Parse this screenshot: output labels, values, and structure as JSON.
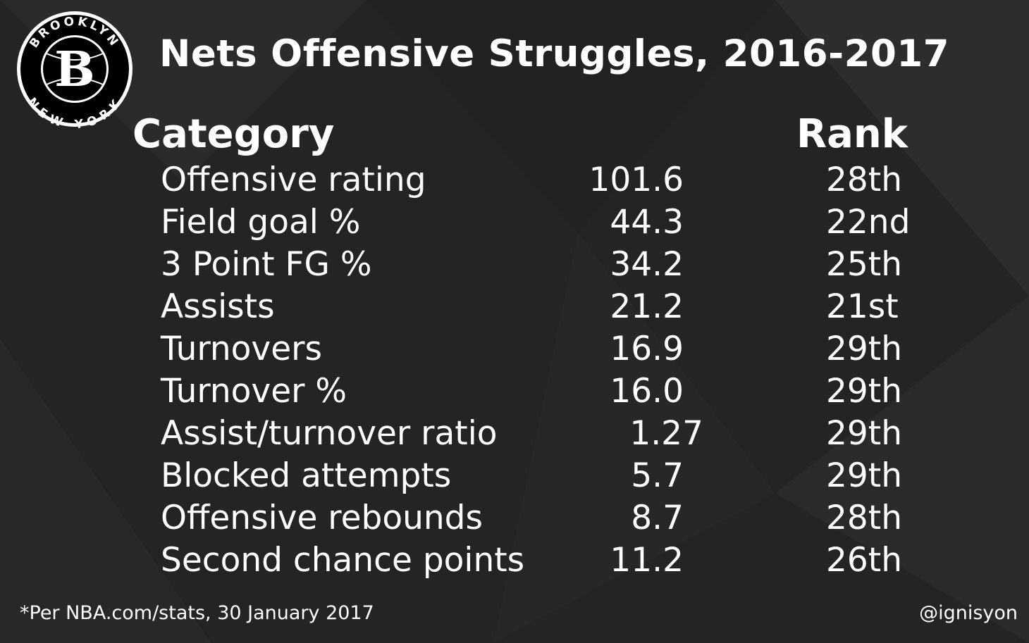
{
  "title": "Nets Offensive Struggles, 2016-2017",
  "logo": {
    "top_text": "BROOKLYN",
    "center": "B",
    "bottom_text": "NEW YORK"
  },
  "headers": {
    "category": "Category",
    "rank": "Rank"
  },
  "rows": [
    {
      "category": "Offensive rating",
      "value": "101.6",
      "rank": "28th"
    },
    {
      "category": "Field goal %",
      "value": "44.3",
      "rank": "22nd"
    },
    {
      "category": "3 Point FG %",
      "value": "34.2",
      "rank": "25th"
    },
    {
      "category": "Assists",
      "value": "21.2",
      "rank": "21st"
    },
    {
      "category": "Turnovers",
      "value": "16.9",
      "rank": "29th"
    },
    {
      "category": "Turnover %",
      "value": "16.0",
      "rank": "29th"
    },
    {
      "category": "Assist/turnover ratio",
      "value": "1.27",
      "rank": "29th"
    },
    {
      "category": "Blocked attempts",
      "value": "5.7",
      "rank": "29th"
    },
    {
      "category": "Offensive rebounds",
      "value": "8.7",
      "rank": "28th"
    },
    {
      "category": "Second chance points",
      "value": "11.2",
      "rank": "26th"
    }
  ],
  "footer": {
    "source": "*Per NBA.com/stats, 30 January 2017",
    "handle": "@ignisyon"
  },
  "colors": {
    "background": "#262626",
    "text": "#ffffff"
  }
}
